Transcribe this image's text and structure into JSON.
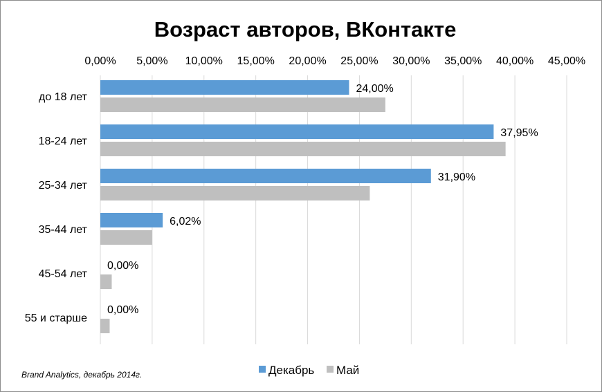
{
  "chart_data": {
    "type": "bar",
    "orientation": "horizontal",
    "title": "Возраст авторов, ВКонтакте",
    "categories": [
      "до 18 лет",
      "18-24 лет",
      "25-34 лет",
      "35-44 лет",
      "45-54 лет",
      "55 и старше"
    ],
    "series": [
      {
        "name": "Декабрь",
        "color": "#5b9bd5",
        "values": [
          24.0,
          37.95,
          31.9,
          6.02,
          0.0,
          0.0
        ],
        "labels": [
          "24,00%",
          "37,95%",
          "31,90%",
          "6,02%",
          "0,00%",
          "0,00%"
        ]
      },
      {
        "name": "Май",
        "color": "#bfbfbf",
        "values": [
          27.5,
          39.1,
          26.0,
          5.0,
          1.1,
          0.9
        ]
      }
    ],
    "xlim": [
      0,
      45
    ],
    "x_ticks": [
      0,
      5,
      10,
      15,
      20,
      25,
      30,
      35,
      40,
      45
    ],
    "x_tick_labels": [
      "0,00%",
      "5,00%",
      "10,00%",
      "15,00%",
      "20,00%",
      "25,00%",
      "30,00%",
      "35,00%",
      "40,00%",
      "45,00%"
    ],
    "x_axis_position": "top",
    "grid": true,
    "legend_position": "bottom",
    "source_note": "Brand Analytics, декабрь 2014г."
  }
}
